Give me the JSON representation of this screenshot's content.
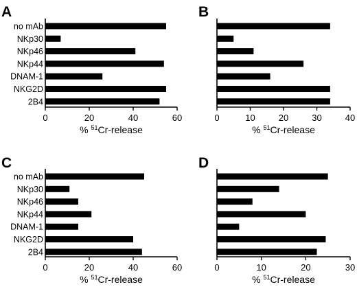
{
  "chart_data": [
    {
      "panel": "A",
      "type": "bar",
      "orientation": "horizontal",
      "categories": [
        "no mAb",
        "NKp30",
        "NKp46",
        "NKp44",
        "DNAM-1",
        "NKG2D",
        "2B4"
      ],
      "values": [
        55,
        7,
        41,
        54,
        26,
        55,
        52
      ],
      "xlim": [
        0,
        60
      ],
      "xticks": [
        0,
        20,
        40,
        60
      ],
      "xlabel_prefix": "% ",
      "xlabel_superscript": "51",
      "xlabel_suffix": "Cr-release",
      "show_category_labels": true
    },
    {
      "panel": "B",
      "type": "bar",
      "orientation": "horizontal",
      "categories": [
        "no mAb",
        "NKp30",
        "NKp46",
        "NKp44",
        "DNAM-1",
        "NKG2D",
        "2B4"
      ],
      "values": [
        34,
        5,
        11,
        26,
        16,
        34,
        34
      ],
      "xlim": [
        0,
        40
      ],
      "xticks": [
        0,
        10,
        20,
        30,
        40
      ],
      "xlabel_prefix": "% ",
      "xlabel_superscript": "51",
      "xlabel_suffix": "Cr-release",
      "show_category_labels": false
    },
    {
      "panel": "C",
      "type": "bar",
      "orientation": "horizontal",
      "categories": [
        "no mAb",
        "NKp30",
        "NKp46",
        "NKp44",
        "DNAM-1",
        "NKG2D",
        "2B4"
      ],
      "values": [
        45,
        11,
        15,
        21,
        15,
        40,
        44
      ],
      "xlim": [
        0,
        60
      ],
      "xticks": [
        0,
        20,
        40,
        60
      ],
      "xlabel_prefix": "% ",
      "xlabel_superscript": "51",
      "xlabel_suffix": "Cr-release",
      "show_category_labels": true
    },
    {
      "panel": "D",
      "type": "bar",
      "orientation": "horizontal",
      "categories": [
        "no mAb",
        "NKp30",
        "NKp46",
        "NKp44",
        "DNAM-1",
        "NKG2D",
        "2B4"
      ],
      "values": [
        25,
        14,
        8,
        20,
        5,
        24.5,
        22.5
      ],
      "xlim": [
        0,
        30
      ],
      "xticks": [
        0,
        10,
        20,
        30
      ],
      "xlabel_prefix": "% ",
      "xlabel_superscript": "51",
      "xlabel_suffix": "Cr-release",
      "show_category_labels": false
    }
  ],
  "colors": {
    "bar": "#000000",
    "axis": "#000000",
    "background": "#ffffff"
  }
}
